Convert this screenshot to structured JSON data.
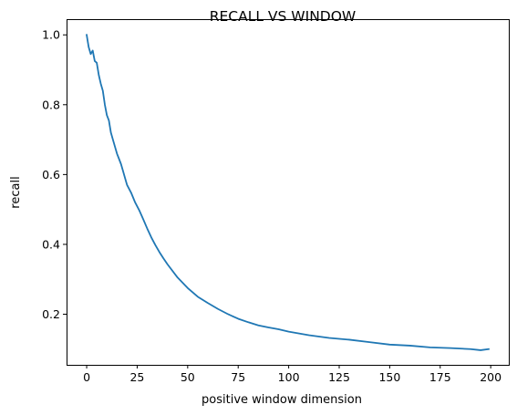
{
  "chart_data": {
    "type": "line",
    "title": "RECALL VS WINDOW",
    "xlabel": "positive window dimension",
    "ylabel": "recall",
    "xlim": [
      -9.95,
      208.95
    ],
    "ylim": [
      0.055,
      1.045
    ],
    "xticks": [
      0,
      25,
      50,
      75,
      100,
      125,
      150,
      175,
      200
    ],
    "yticks": [
      0.2,
      0.4,
      0.6,
      0.8,
      1.0
    ],
    "xtick_labels": [
      "0",
      "25",
      "50",
      "75",
      "100",
      "125",
      "150",
      "175",
      "200"
    ],
    "ytick_labels": [
      "0.2",
      "0.4",
      "0.6",
      "0.8",
      "1.0"
    ],
    "grid": false,
    "series": [
      {
        "color": "#1f77b4",
        "x": [
          0,
          1,
          2,
          3,
          4,
          5,
          6,
          7,
          8,
          9,
          10,
          11,
          12,
          13,
          14,
          15,
          16,
          17,
          18,
          19,
          20,
          22,
          24,
          26,
          28,
          30,
          32,
          34,
          36,
          38,
          40,
          45,
          50,
          55,
          60,
          65,
          70,
          75,
          80,
          85,
          90,
          95,
          100,
          110,
          120,
          130,
          140,
          150,
          160,
          170,
          180,
          190,
          195,
          199
        ],
        "y": [
          1.0,
          0.965,
          0.945,
          0.955,
          0.925,
          0.92,
          0.885,
          0.86,
          0.84,
          0.8,
          0.77,
          0.755,
          0.72,
          0.7,
          0.68,
          0.66,
          0.645,
          0.63,
          0.61,
          0.59,
          0.57,
          0.548,
          0.52,
          0.498,
          0.472,
          0.445,
          0.42,
          0.398,
          0.378,
          0.36,
          0.343,
          0.305,
          0.275,
          0.25,
          0.232,
          0.215,
          0.2,
          0.187,
          0.177,
          0.168,
          0.162,
          0.157,
          0.15,
          0.14,
          0.132,
          0.127,
          0.12,
          0.113,
          0.11,
          0.105,
          0.103,
          0.1,
          0.097,
          0.1
        ]
      }
    ]
  }
}
